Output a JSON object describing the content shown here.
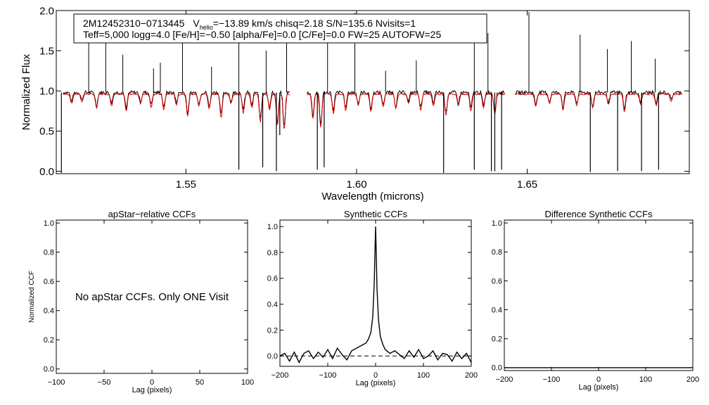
{
  "chart_data": [
    {
      "type": "line",
      "id": "spectrum",
      "xlabel": "Wavelength (microns)",
      "ylabel": "Normalized Flux",
      "xlim": [
        1.512,
        1.6975
      ],
      "ylim": [
        -0.03,
        2.0
      ],
      "xticks": [
        1.55,
        1.6,
        1.65
      ],
      "xtick_labels": [
        "1.55",
        "1.60",
        "1.65"
      ],
      "yticks": [
        0.0,
        0.5,
        1.0,
        1.5,
        2.0
      ],
      "ytick_labels": [
        "0.0",
        "0.5",
        "1.0",
        "1.5",
        "2.0"
      ],
      "chips": [
        [
          1.514,
          1.5805
        ],
        [
          1.5855,
          1.6435
        ],
        [
          1.6465,
          1.6955
        ]
      ],
      "series": [
        {
          "name": "observed",
          "color": "#000000",
          "continuum": 0.98
        },
        {
          "name": "synthetic",
          "color": "#dd0000",
          "continuum": 0.96
        }
      ],
      "spikes_up": [
        1.5215,
        1.5265,
        1.5315,
        1.5405,
        1.5425,
        1.549,
        1.5575,
        1.5655,
        1.5735,
        1.5795,
        1.5915,
        1.5995,
        1.6085,
        1.6175,
        1.6345,
        1.6385,
        1.6505,
        1.6655,
        1.6735,
        1.6805,
        1.6875
      ],
      "spikes_up_heights": [
        1.85,
        1.65,
        1.45,
        1.28,
        1.35,
        1.6,
        1.3,
        1.88,
        1.5,
        1.95,
        1.75,
        1.97,
        1.25,
        1.38,
        1.65,
        1.72,
        1.98,
        1.7,
        1.52,
        1.62,
        1.4
      ],
      "spikes_down": [
        1.5135,
        1.5655,
        1.5725,
        1.5765,
        1.5775,
        1.5885,
        1.5905,
        1.6255,
        1.6345,
        1.6395,
        1.6405,
        1.6425,
        1.6685,
        1.6765,
        1.6835,
        1.6885
      ],
      "spikes_down_depths": [
        -0.02,
        0.02,
        0.05,
        0.0,
        0.45,
        0.02,
        0.05,
        -0.02,
        0.02,
        0.0,
        0.0,
        0.02,
        -0.01,
        0.0,
        0.0,
        0.02
      ],
      "absorption_lines": [
        1.5165,
        1.5195,
        1.5238,
        1.5282,
        1.5325,
        1.5367,
        1.5398,
        1.5435,
        1.5472,
        1.5505,
        1.5538,
        1.5568,
        1.5603,
        1.5632,
        1.5668,
        1.5693,
        1.5718,
        1.5745,
        1.5768,
        1.5788,
        1.5872,
        1.5895,
        1.5932,
        1.5968,
        1.6005,
        1.6042,
        1.6078,
        1.6115,
        1.6152,
        1.6188,
        1.6225,
        1.6262,
        1.6298,
        1.6335,
        1.6372,
        1.6405,
        1.6525,
        1.6565,
        1.6605,
        1.6645,
        1.6692,
        1.6738,
        1.6785,
        1.6832,
        1.6878,
        1.6922
      ],
      "absorption_depths": [
        0.12,
        0.1,
        0.18,
        0.14,
        0.22,
        0.12,
        0.16,
        0.2,
        0.13,
        0.28,
        0.15,
        0.19,
        0.3,
        0.12,
        0.24,
        0.17,
        0.35,
        0.2,
        0.4,
        0.45,
        0.3,
        0.42,
        0.25,
        0.2,
        0.14,
        0.22,
        0.16,
        0.18,
        0.12,
        0.2,
        0.15,
        0.26,
        0.14,
        0.21,
        0.18,
        0.25,
        0.16,
        0.12,
        0.2,
        0.14,
        0.18,
        0.13,
        0.22,
        0.12,
        0.15,
        0.1
      ],
      "annotation_line1_name": "2M12452310−0713445",
      "annotation_vhelio_label": "V",
      "annotation_vhelio_sub": "helio",
      "annotation_vhelio_value": "=−13.89 km/s  chisq=2.18  S/N=135.6  Nvisits=1",
      "annotation_line2": "Teff=5,000 logg=4.0 [Fe/H]=−0.50 [alpha/Fe]=0.0 [C/Fe]=0.0 FW=25 AUTOFW=25"
    },
    {
      "type": "line",
      "id": "apstar",
      "title": "apStar−relative CCFs",
      "xlabel": "Lag (pixels)",
      "ylabel": "Normalized CCF",
      "xlim": [
        -100,
        100
      ],
      "ylim": [
        -0.03,
        1.02
      ],
      "xticks": [
        -100,
        -50,
        0,
        50,
        100
      ],
      "xtick_labels": [
        "−100",
        "−50",
        "0",
        "50",
        "100"
      ],
      "yticks": [
        0.0,
        0.2,
        0.4,
        0.6,
        0.8,
        1.0
      ],
      "ytick_labels": [
        "0.0",
        "0.2",
        "0.4",
        "0.6",
        "0.8",
        "1.0"
      ],
      "message": "No apStar CCFs.  Only ONE Visit",
      "series": []
    },
    {
      "type": "line",
      "id": "synthetic",
      "title": "Synthetic CCFs",
      "xlabel": "Lag (pixels)",
      "ylabel": "",
      "xlim": [
        -200,
        200
      ],
      "ylim": [
        -0.08,
        1.05
      ],
      "xticks": [
        -200,
        -100,
        0,
        100,
        200
      ],
      "xtick_labels": [
        "−200",
        "−100",
        "0",
        "100",
        "200"
      ],
      "yticks": [
        0.0,
        0.2,
        0.4,
        0.6,
        0.8,
        1.0
      ],
      "ytick_labels": [
        "0.0",
        "0.2",
        "0.4",
        "0.6",
        "0.8",
        "1.0"
      ],
      "zero_line": 0.0,
      "series": [
        {
          "name": "ccf",
          "color": "#000000",
          "x": [
            -200,
            -190,
            -180,
            -170,
            -160,
            -150,
            -140,
            -130,
            -120,
            -110,
            -100,
            -90,
            -80,
            -70,
            -60,
            -50,
            -40,
            -30,
            -20,
            -15,
            -10,
            -6,
            -3,
            -1,
            0,
            1,
            3,
            6,
            10,
            15,
            20,
            30,
            40,
            50,
            60,
            70,
            80,
            90,
            100,
            110,
            120,
            130,
            140,
            150,
            160,
            170,
            180,
            190,
            200
          ],
          "y": [
            0.0,
            0.02,
            -0.04,
            0.03,
            -0.05,
            0.02,
            0.04,
            -0.02,
            0.03,
            -0.01,
            0.05,
            -0.02,
            0.06,
            0.01,
            -0.03,
            0.04,
            0.06,
            0.08,
            0.1,
            0.13,
            0.18,
            0.3,
            0.55,
            0.85,
            1.0,
            0.85,
            0.52,
            0.28,
            0.15,
            0.09,
            0.05,
            0.02,
            0.04,
            0.01,
            -0.02,
            0.04,
            -0.01,
            0.05,
            -0.02,
            0.0,
            0.04,
            -0.03,
            0.02,
            0.01,
            -0.04,
            0.03,
            -0.02,
            0.02,
            -0.05
          ]
        }
      ]
    },
    {
      "type": "line",
      "id": "difference",
      "title": "Difference Synthetic CCFs",
      "xlabel": "Lag (pixels)",
      "ylabel": "",
      "xlim": [
        -200,
        200
      ],
      "ylim": [
        -0.02,
        1.02
      ],
      "xticks": [
        -200,
        -100,
        0,
        100,
        200
      ],
      "xtick_labels": [
        "−200",
        "−100",
        "0",
        "100",
        "200"
      ],
      "yticks": [
        0.0,
        0.2,
        0.4,
        0.6,
        0.8,
        1.0
      ],
      "ytick_labels": [
        "0.0",
        "0.2",
        "0.4",
        "0.6",
        "0.8",
        "1.0"
      ],
      "series": [
        {
          "name": "difference",
          "color": "#000000",
          "x": [
            -200,
            200
          ],
          "y": [
            0.0,
            0.0
          ]
        }
      ]
    }
  ]
}
